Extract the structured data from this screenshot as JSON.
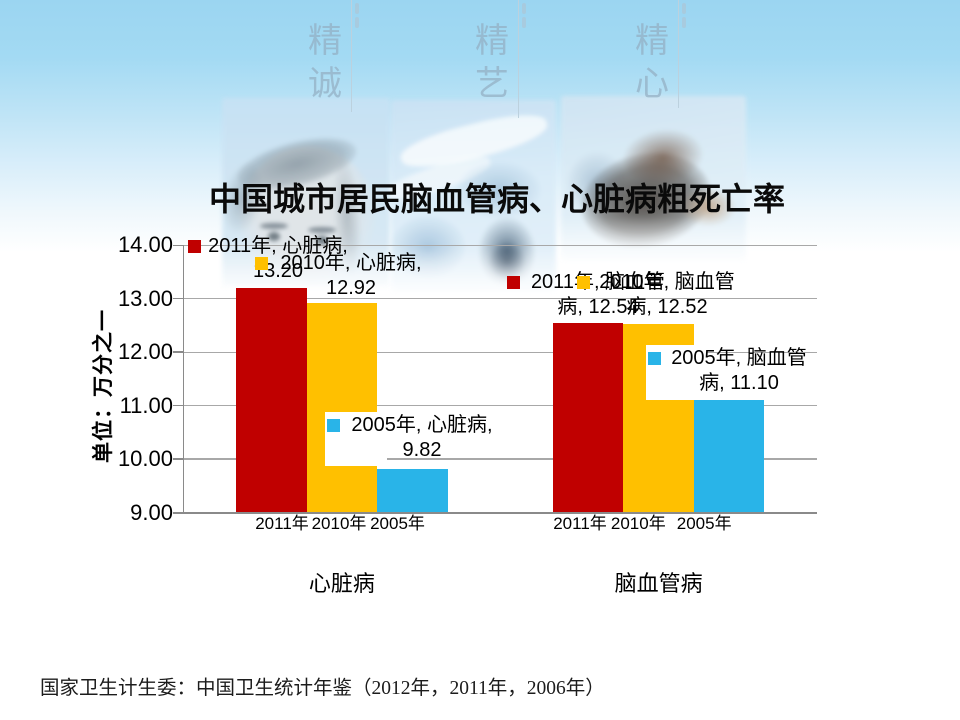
{
  "slide": {
    "title": "中国城市居民脑血管病、心脏病粗死亡率",
    "source_note": "国家卫生计生委：中国卫生统计年鉴（2012年，2011年，2006年）"
  },
  "decor": {
    "banners": [
      {
        "text": "精诚"
      },
      {
        "text": "精艺"
      },
      {
        "text": "精心"
      }
    ]
  },
  "chart_data": {
    "type": "bar",
    "title": "中国城市居民脑血管病、心脏病粗死亡率",
    "ylabel": "单位：万分之一",
    "ylim": [
      9,
      14
    ],
    "ytick_labels": [
      "14.00",
      "13.00",
      "12.00",
      "11.00",
      "10.00",
      "9.00"
    ],
    "grid": true,
    "categories": [
      "心脏病",
      "脑血管病"
    ],
    "series": [
      {
        "name": "2011年",
        "color": "#C00000",
        "values": [
          13.2,
          12.54
        ]
      },
      {
        "name": "2010年",
        "color": "#FFC000",
        "values": [
          12.92,
          12.52
        ]
      },
      {
        "name": "2005年",
        "color": "#29B4E8",
        "values": [
          9.82,
          11.1
        ]
      }
    ],
    "bar_axis_labels": [
      "2011年",
      "2010年",
      "2005年"
    ],
    "data_labels": [
      {
        "lines": [
          "2011年, 心脏病,",
          "13.20"
        ],
        "marker_color": "#C00000"
      },
      {
        "lines": [
          "2010年, 心脏病,",
          "12.92"
        ],
        "marker_color": "#FFC000"
      },
      {
        "lines": [
          "2005年, 心脏病,",
          "9.82"
        ],
        "marker_color": "#29B4E8"
      },
      {
        "lines": [
          "2011年, 脑血管",
          "病, 12.54"
        ],
        "marker_color": "#C00000"
      },
      {
        "lines": [
          "2010年, 脑血管",
          "病, 12.52"
        ],
        "marker_color": "#FFC000"
      },
      {
        "lines": [
          "2005年, 脑血管",
          "病, 11.10"
        ],
        "marker_color": "#29B4E8"
      }
    ]
  }
}
